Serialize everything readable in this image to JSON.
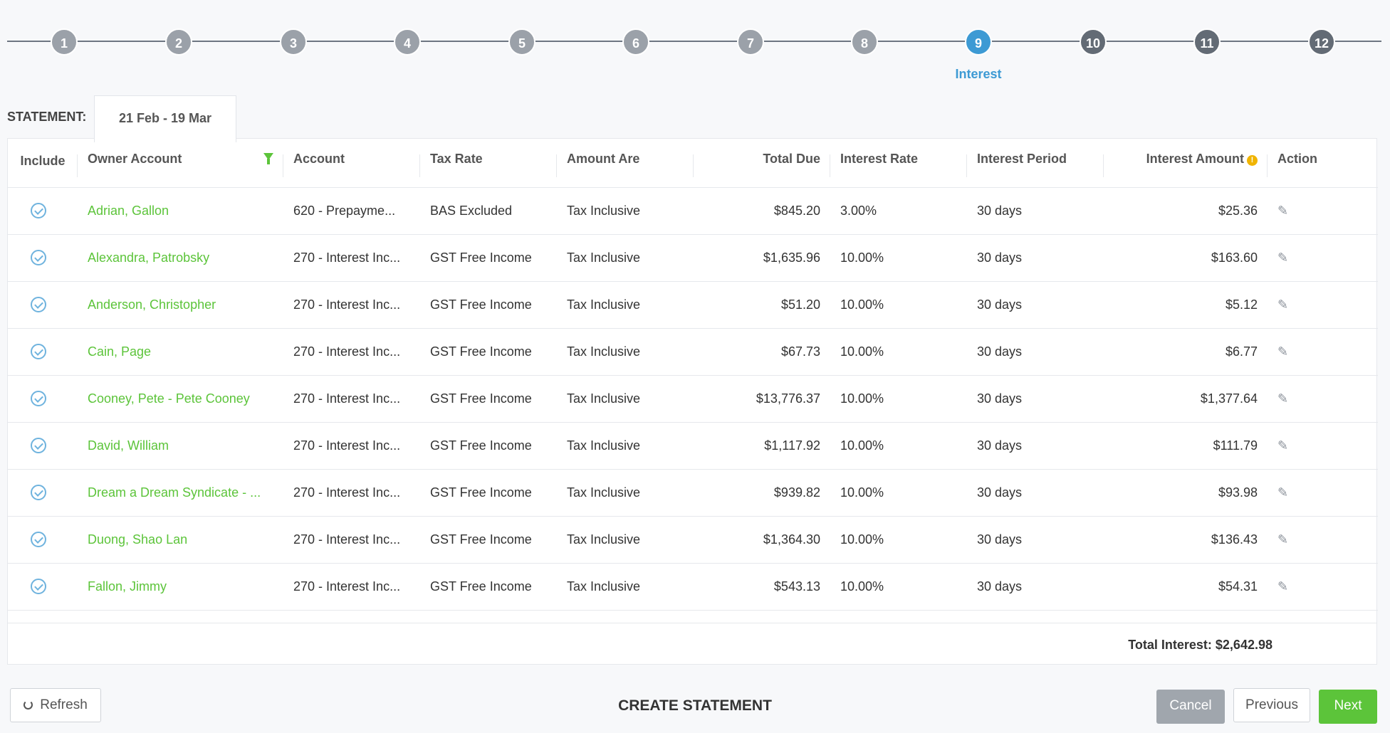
{
  "stepper": {
    "steps": [
      {
        "label": "1",
        "state": "done"
      },
      {
        "label": "2",
        "state": "done"
      },
      {
        "label": "3",
        "state": "done"
      },
      {
        "label": "4",
        "state": "done"
      },
      {
        "label": "5",
        "state": "done"
      },
      {
        "label": "6",
        "state": "done"
      },
      {
        "label": "7",
        "state": "done"
      },
      {
        "label": "8",
        "state": "done"
      },
      {
        "label": "9",
        "state": "active"
      },
      {
        "label": "10",
        "state": "todo"
      },
      {
        "label": "11",
        "state": "todo"
      },
      {
        "label": "12",
        "state": "todo"
      }
    ],
    "active_label": "Interest"
  },
  "statement": {
    "label": "STATEMENT:",
    "period": "21 Feb - 19 Mar"
  },
  "table": {
    "headers": {
      "include": "Include",
      "owner": "Owner Account",
      "account": "Account",
      "tax_rate": "Tax Rate",
      "amount_are": "Amount Are",
      "total_due": "Total Due",
      "interest_rate": "Interest Rate",
      "interest_period": "Interest Period",
      "interest_amount": "Interest Amount",
      "action": "Action"
    },
    "rows": [
      {
        "owner": "Adrian, Gallon",
        "account": "620 - Prepayme...",
        "tax_rate": "BAS Excluded",
        "amount_are": "Tax Inclusive",
        "total_due": "$845.20",
        "interest_rate": "3.00%",
        "interest_period": "30 days",
        "interest_amount": "$25.36"
      },
      {
        "owner": "Alexandra, Patrobsky",
        "account": "270 - Interest Inc...",
        "tax_rate": "GST Free Income",
        "amount_are": "Tax Inclusive",
        "total_due": "$1,635.96",
        "interest_rate": "10.00%",
        "interest_period": "30 days",
        "interest_amount": "$163.60"
      },
      {
        "owner": "Anderson, Christopher",
        "account": "270 - Interest Inc...",
        "tax_rate": "GST Free Income",
        "amount_are": "Tax Inclusive",
        "total_due": "$51.20",
        "interest_rate": "10.00%",
        "interest_period": "30 days",
        "interest_amount": "$5.12"
      },
      {
        "owner": "Cain, Page",
        "account": "270 - Interest Inc...",
        "tax_rate": "GST Free Income",
        "amount_are": "Tax Inclusive",
        "total_due": "$67.73",
        "interest_rate": "10.00%",
        "interest_period": "30 days",
        "interest_amount": "$6.77"
      },
      {
        "owner": "Cooney, Pete - Pete Cooney",
        "account": "270 - Interest Inc...",
        "tax_rate": "GST Free Income",
        "amount_are": "Tax Inclusive",
        "total_due": "$13,776.37",
        "interest_rate": "10.00%",
        "interest_period": "30 days",
        "interest_amount": "$1,377.64"
      },
      {
        "owner": "David, William",
        "account": "270 - Interest Inc...",
        "tax_rate": "GST Free Income",
        "amount_are": "Tax Inclusive",
        "total_due": "$1,117.92",
        "interest_rate": "10.00%",
        "interest_period": "30 days",
        "interest_amount": "$111.79"
      },
      {
        "owner": "Dream a Dream Syndicate - ...",
        "account": "270 - Interest Inc...",
        "tax_rate": "GST Free Income",
        "amount_are": "Tax Inclusive",
        "total_due": "$939.82",
        "interest_rate": "10.00%",
        "interest_period": "30 days",
        "interest_amount": "$93.98"
      },
      {
        "owner": "Duong, Shao Lan",
        "account": "270 - Interest Inc...",
        "tax_rate": "GST Free Income",
        "amount_are": "Tax Inclusive",
        "total_due": "$1,364.30",
        "interest_rate": "10.00%",
        "interest_period": "30 days",
        "interest_amount": "$136.43"
      },
      {
        "owner": "Fallon, Jimmy",
        "account": "270 - Interest Inc...",
        "tax_rate": "GST Free Income",
        "amount_are": "Tax Inclusive",
        "total_due": "$543.13",
        "interest_rate": "10.00%",
        "interest_period": "30 days",
        "interest_amount": "$54.31"
      }
    ],
    "total": "Total Interest: $2,642.98"
  },
  "footer": {
    "refresh": "Refresh",
    "title": "CREATE STATEMENT",
    "cancel": "Cancel",
    "previous": "Previous",
    "next": "Next"
  },
  "colors": {
    "accent": "#3d9ad4",
    "green": "#5cc43a"
  }
}
